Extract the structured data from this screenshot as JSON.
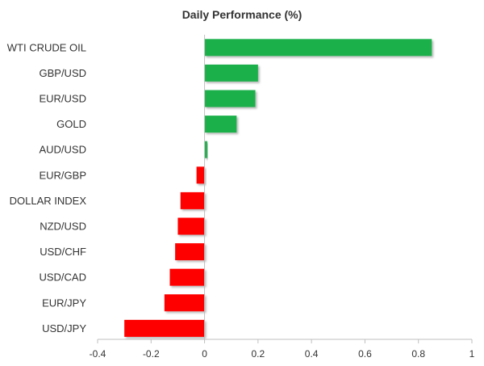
{
  "chart_data": {
    "type": "bar",
    "orientation": "horizontal",
    "title": "Daily Performance (%)",
    "xlabel": "",
    "ylabel": "",
    "categories": [
      "WTI CRUDE OIL",
      "GBP/USD",
      "EUR/USD",
      "GOLD",
      "AUD/USD",
      "EUR/GBP",
      "DOLLAR INDEX",
      "NZD/USD",
      "USD/CHF",
      "USD/CAD",
      "EUR/JPY",
      "USD/JPY"
    ],
    "values": [
      0.85,
      0.2,
      0.19,
      0.12,
      0.01,
      -0.03,
      -0.09,
      -0.1,
      -0.11,
      -0.13,
      -0.15,
      -0.3
    ],
    "xlim": [
      -0.4,
      1
    ],
    "ticks": [
      -0.4,
      -0.2,
      0,
      0.2,
      0.4,
      0.6,
      0.8,
      1
    ],
    "tick_labels": [
      "-0.4",
      "-0.2",
      "0",
      "0.2",
      "0.4",
      "0.6",
      "0.8",
      "1"
    ],
    "grid": false,
    "legend": "none",
    "positive_color": "#1fb04b",
    "negative_color": "#ff0000"
  }
}
